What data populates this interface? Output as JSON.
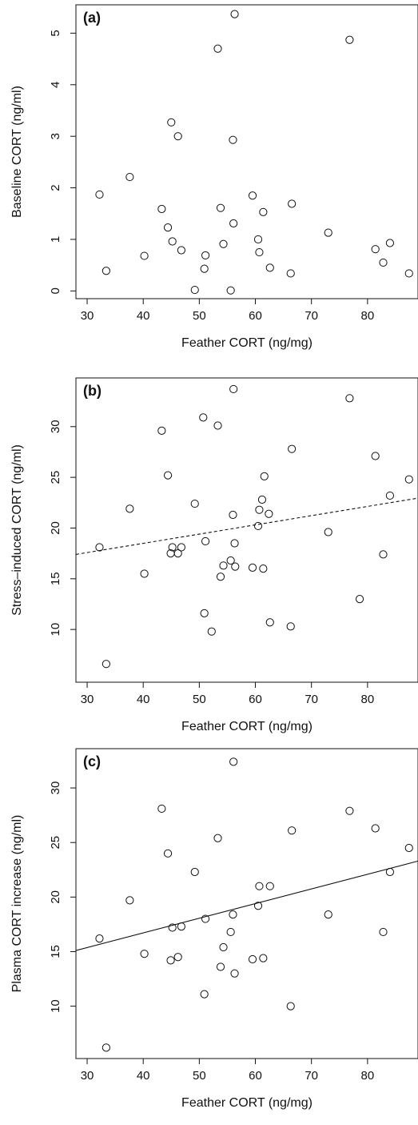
{
  "chart_data": [
    {
      "type": "scatter",
      "panel_label": "(a)",
      "xlabel": "Feather CORT (ng/mg)",
      "ylabel": "Baseline CORT  (ng/ml)",
      "xlim": [
        28,
        89
      ],
      "ylim": [
        -0.15,
        5.55
      ],
      "xticks": [
        30,
        40,
        50,
        60,
        70,
        80
      ],
      "yticks": [
        0,
        1,
        2,
        3,
        4,
        5
      ],
      "tick_labels_x": [
        "30",
        "40",
        "50",
        "60",
        "70",
        "80"
      ],
      "tick_labels_y": [
        "0",
        "1",
        "2",
        "3",
        "4",
        "5"
      ],
      "points": [
        [
          32.2,
          1.87
        ],
        [
          33.4,
          0.39
        ],
        [
          37.6,
          2.21
        ],
        [
          40.2,
          0.68
        ],
        [
          43.3,
          1.59
        ],
        [
          44.4,
          1.23
        ],
        [
          45.0,
          3.27
        ],
        [
          45.2,
          0.96
        ],
        [
          46.2,
          3.0
        ],
        [
          46.8,
          0.79
        ],
        [
          49.2,
          0.02
        ],
        [
          50.9,
          0.43
        ],
        [
          51.1,
          0.69
        ],
        [
          53.3,
          4.7
        ],
        [
          53.8,
          1.61
        ],
        [
          54.3,
          0.91
        ],
        [
          55.6,
          0.01
        ],
        [
          56.0,
          2.93
        ],
        [
          56.1,
          1.31
        ],
        [
          56.3,
          5.37
        ],
        [
          59.5,
          1.85
        ],
        [
          60.5,
          1.0
        ],
        [
          60.7,
          0.75
        ],
        [
          61.4,
          1.53
        ],
        [
          62.6,
          0.45
        ],
        [
          66.3,
          0.34
        ],
        [
          66.5,
          1.69
        ],
        [
          73.0,
          1.13
        ],
        [
          76.8,
          4.87
        ],
        [
          81.4,
          0.81
        ],
        [
          82.8,
          0.55
        ],
        [
          84.0,
          0.93
        ],
        [
          87.4,
          0.34
        ]
      ],
      "fit_line": null
    },
    {
      "type": "scatter",
      "panel_label": "(b)",
      "xlabel": "Feather CORT (ng/mg)",
      "ylabel": "Stress–induced CORT (ng/ml)",
      "xlim": [
        28,
        89
      ],
      "ylim": [
        4.8,
        34.8
      ],
      "xticks": [
        30,
        40,
        50,
        60,
        70,
        80
      ],
      "yticks": [
        10,
        15,
        20,
        25,
        30
      ],
      "tick_labels_x": [
        "30",
        "40",
        "50",
        "60",
        "70",
        "80"
      ],
      "tick_labels_y": [
        "10",
        "15",
        "20",
        "25",
        "30"
      ],
      "points": [
        [
          32.2,
          18.1
        ],
        [
          33.4,
          6.6
        ],
        [
          37.6,
          21.9
        ],
        [
          40.2,
          15.5
        ],
        [
          43.3,
          29.6
        ],
        [
          44.4,
          25.2
        ],
        [
          44.9,
          17.5
        ],
        [
          45.2,
          18.1
        ],
        [
          46.2,
          17.5
        ],
        [
          46.8,
          18.1
        ],
        [
          49.2,
          22.4
        ],
        [
          50.7,
          30.9
        ],
        [
          50.9,
          11.6
        ],
        [
          51.1,
          18.7
        ],
        [
          52.2,
          9.8
        ],
        [
          53.3,
          30.1
        ],
        [
          53.8,
          15.2
        ],
        [
          54.3,
          16.3
        ],
        [
          55.6,
          16.8
        ],
        [
          56.0,
          21.3
        ],
        [
          56.1,
          33.7
        ],
        [
          56.3,
          18.5
        ],
        [
          56.4,
          16.2
        ],
        [
          59.5,
          16.1
        ],
        [
          60.5,
          20.2
        ],
        [
          60.7,
          21.8
        ],
        [
          61.2,
          22.8
        ],
        [
          61.4,
          16.0
        ],
        [
          61.6,
          25.1
        ],
        [
          62.4,
          21.4
        ],
        [
          62.6,
          10.7
        ],
        [
          66.3,
          10.3
        ],
        [
          66.5,
          27.8
        ],
        [
          73.0,
          19.6
        ],
        [
          76.8,
          32.8
        ],
        [
          78.6,
          13.0
        ],
        [
          81.4,
          27.1
        ],
        [
          82.8,
          17.4
        ],
        [
          84.0,
          23.2
        ],
        [
          87.4,
          24.8
        ]
      ],
      "fit_line": {
        "style": "dashed",
        "x": [
          28,
          89
        ],
        "y": [
          17.4,
          22.95
        ]
      }
    },
    {
      "type": "scatter",
      "panel_label": "(c)",
      "xlabel": "Feather CORT (ng/mg)",
      "ylabel": "Plasma CORT increase (ng/ml)",
      "xlim": [
        28,
        89
      ],
      "ylim": [
        5.2,
        33.6
      ],
      "xticks": [
        30,
        40,
        50,
        60,
        70,
        80
      ],
      "yticks": [
        10,
        15,
        20,
        25,
        30
      ],
      "tick_labels_x": [
        "30",
        "40",
        "50",
        "60",
        "70",
        "80"
      ],
      "tick_labels_y": [
        "10",
        "15",
        "20",
        "25",
        "30"
      ],
      "points": [
        [
          32.2,
          16.2
        ],
        [
          33.4,
          6.2
        ],
        [
          37.6,
          19.7
        ],
        [
          40.2,
          14.8
        ],
        [
          43.3,
          28.1
        ],
        [
          44.4,
          24.0
        ],
        [
          44.9,
          14.2
        ],
        [
          45.2,
          17.2
        ],
        [
          46.2,
          14.5
        ],
        [
          46.8,
          17.3
        ],
        [
          49.2,
          22.3
        ],
        [
          50.9,
          11.1
        ],
        [
          51.1,
          18.0
        ],
        [
          53.3,
          25.4
        ],
        [
          53.8,
          13.6
        ],
        [
          54.3,
          15.4
        ],
        [
          55.6,
          16.8
        ],
        [
          56.0,
          18.4
        ],
        [
          56.1,
          32.4
        ],
        [
          56.3,
          13.0
        ],
        [
          59.5,
          14.3
        ],
        [
          60.5,
          19.2
        ],
        [
          60.7,
          21.0
        ],
        [
          61.4,
          14.4
        ],
        [
          62.6,
          21.0
        ],
        [
          66.3,
          10.0
        ],
        [
          66.5,
          26.1
        ],
        [
          73.0,
          18.4
        ],
        [
          76.8,
          27.9
        ],
        [
          81.4,
          26.3
        ],
        [
          82.8,
          16.8
        ],
        [
          84.0,
          22.3
        ],
        [
          87.4,
          24.5
        ]
      ],
      "fit_line": {
        "style": "solid",
        "x": [
          28,
          89
        ],
        "y": [
          15.1,
          23.3
        ]
      }
    }
  ]
}
